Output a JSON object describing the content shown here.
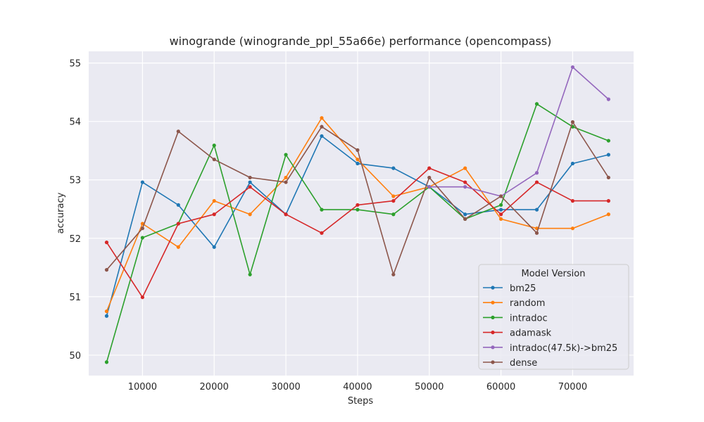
{
  "chart_data": {
    "type": "line",
    "title": "winogrande (winogrande_ppl_55a66e) performance (opencompass)",
    "xlabel": "Steps",
    "ylabel": "accuracy",
    "xlim": [
      2500,
      78500
    ],
    "ylim": [
      49.65,
      55.2
    ],
    "xticks": [
      10000,
      20000,
      30000,
      40000,
      50000,
      60000,
      70000
    ],
    "yticks": [
      50,
      51,
      52,
      53,
      54,
      55
    ],
    "grid": true,
    "legend": {
      "title": "Model Version",
      "placement": "bottom-right"
    },
    "series": [
      {
        "name": "bm25",
        "color": "#1f77b4",
        "x": [
          5000,
          10000,
          15000,
          20000,
          25000,
          30000,
          35000,
          40000,
          45000,
          50000,
          55000,
          60000,
          65000,
          70000,
          75000
        ],
        "y": [
          50.67,
          52.96,
          52.57,
          51.85,
          52.96,
          52.41,
          53.75,
          53.28,
          53.2,
          52.88,
          52.41,
          52.49,
          52.49,
          53.28,
          53.43
        ]
      },
      {
        "name": "random",
        "color": "#ff7f0e",
        "x": [
          5000,
          10000,
          15000,
          20000,
          25000,
          30000,
          35000,
          40000,
          45000,
          50000,
          55000,
          60000,
          65000,
          70000,
          75000
        ],
        "y": [
          50.75,
          52.25,
          51.85,
          52.64,
          52.41,
          53.04,
          54.06,
          53.35,
          52.72,
          52.88,
          53.2,
          52.33,
          52.17,
          52.17,
          52.41
        ]
      },
      {
        "name": "intradoc",
        "color": "#2ca02c",
        "x": [
          5000,
          10000,
          15000,
          20000,
          25000,
          30000,
          35000,
          40000,
          45000,
          50000,
          55000,
          60000,
          65000,
          70000,
          75000
        ],
        "y": [
          49.88,
          52.01,
          52.25,
          53.59,
          51.38,
          53.43,
          52.49,
          52.49,
          52.41,
          52.88,
          52.33,
          52.57,
          54.3,
          53.91,
          53.67
        ]
      },
      {
        "name": "adamask",
        "color": "#d62728",
        "x": [
          5000,
          10000,
          15000,
          20000,
          25000,
          30000,
          35000,
          40000,
          45000,
          50000,
          55000,
          60000,
          65000,
          70000,
          75000
        ],
        "y": [
          51.93,
          50.99,
          52.25,
          52.41,
          52.88,
          52.41,
          52.09,
          52.57,
          52.64,
          53.2,
          52.96,
          52.41,
          52.96,
          52.64,
          52.64
        ]
      },
      {
        "name": "intradoc(47.5k)->bm25",
        "color": "#9467bd",
        "x": [
          50000,
          55000,
          60000,
          65000,
          70000,
          75000
        ],
        "y": [
          52.88,
          52.88,
          52.72,
          53.12,
          54.93,
          54.38
        ]
      },
      {
        "name": "dense",
        "color": "#8c564b",
        "x": [
          5000,
          10000,
          15000,
          20000,
          25000,
          30000,
          35000,
          40000,
          45000,
          50000,
          55000,
          60000,
          65000,
          70000,
          75000
        ],
        "y": [
          51.46,
          52.17,
          53.83,
          53.35,
          53.04,
          52.96,
          53.91,
          53.51,
          51.38,
          53.04,
          52.33,
          52.72,
          52.09,
          53.99,
          53.04
        ]
      }
    ]
  }
}
